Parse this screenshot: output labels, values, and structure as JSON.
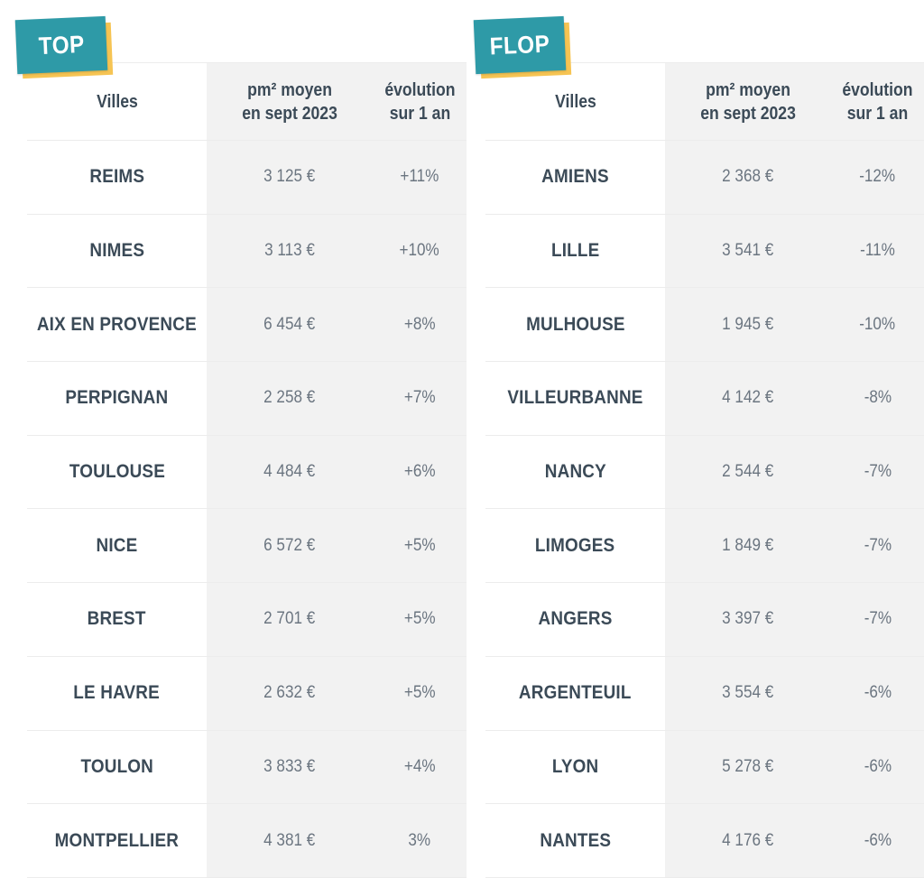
{
  "top": {
    "tag": "TOP",
    "header": {
      "city": "Villes",
      "price_line1": "pm² moyen",
      "price_line2": "en sept 2023",
      "evo_line1": "évolution",
      "evo_line2": "sur 1 an"
    },
    "rows": [
      {
        "city": "REIMS",
        "price": "3 125 €",
        "evo": "+11%"
      },
      {
        "city": "NIMES",
        "price": "3 113 €",
        "evo": "+10%"
      },
      {
        "city": "AIX EN PROVENCE",
        "price": "6 454 €",
        "evo": "+8%"
      },
      {
        "city": "PERPIGNAN",
        "price": "2 258 €",
        "evo": "+7%"
      },
      {
        "city": "TOULOUSE",
        "price": "4 484 €",
        "evo": "+6%"
      },
      {
        "city": "NICE",
        "price": "6 572 €",
        "evo": "+5%"
      },
      {
        "city": "BREST",
        "price": "2 701 €",
        "evo": "+5%"
      },
      {
        "city": "LE HAVRE",
        "price": "2 632 €",
        "evo": "+5%"
      },
      {
        "city": "TOULON",
        "price": "3 833 €",
        "evo": "+4%"
      },
      {
        "city": "MONTPELLIER",
        "price": "4 381 €",
        "evo": "3%"
      }
    ]
  },
  "flop": {
    "tag": "FLOP",
    "header": {
      "city": "Villes",
      "price_line1": "pm² moyen",
      "price_line2": "en sept 2023",
      "evo_line1": "évolution",
      "evo_line2": "sur 1 an"
    },
    "rows": [
      {
        "city": "AMIENS",
        "price": "2 368 €",
        "evo": "-12%"
      },
      {
        "city": "LILLE",
        "price": "3 541 €",
        "evo": "-11%"
      },
      {
        "city": "MULHOUSE",
        "price": "1 945 €",
        "evo": "-10%"
      },
      {
        "city": "VILLEURBANNE",
        "price": "4 142 €",
        "evo": "-8%"
      },
      {
        "city": "NANCY",
        "price": "2 544 €",
        "evo": "-7%"
      },
      {
        "city": "LIMOGES",
        "price": "1 849 €",
        "evo": "-7%"
      },
      {
        "city": "ANGERS",
        "price": "3 397 €",
        "evo": "-7%"
      },
      {
        "city": "ARGENTEUIL",
        "price": "3 554 €",
        "evo": "-6%"
      },
      {
        "city": "LYON",
        "price": "5 278 €",
        "evo": "-6%"
      },
      {
        "city": "NANTES",
        "price": "4 176 €",
        "evo": "-6%"
      }
    ]
  },
  "colors": {
    "tag": "#2e9aa7",
    "tag_shadow": "#f6c453",
    "text_dark": "#3b4a57",
    "text_value": "#6b7580",
    "column_bg": "#f2f2f2"
  }
}
